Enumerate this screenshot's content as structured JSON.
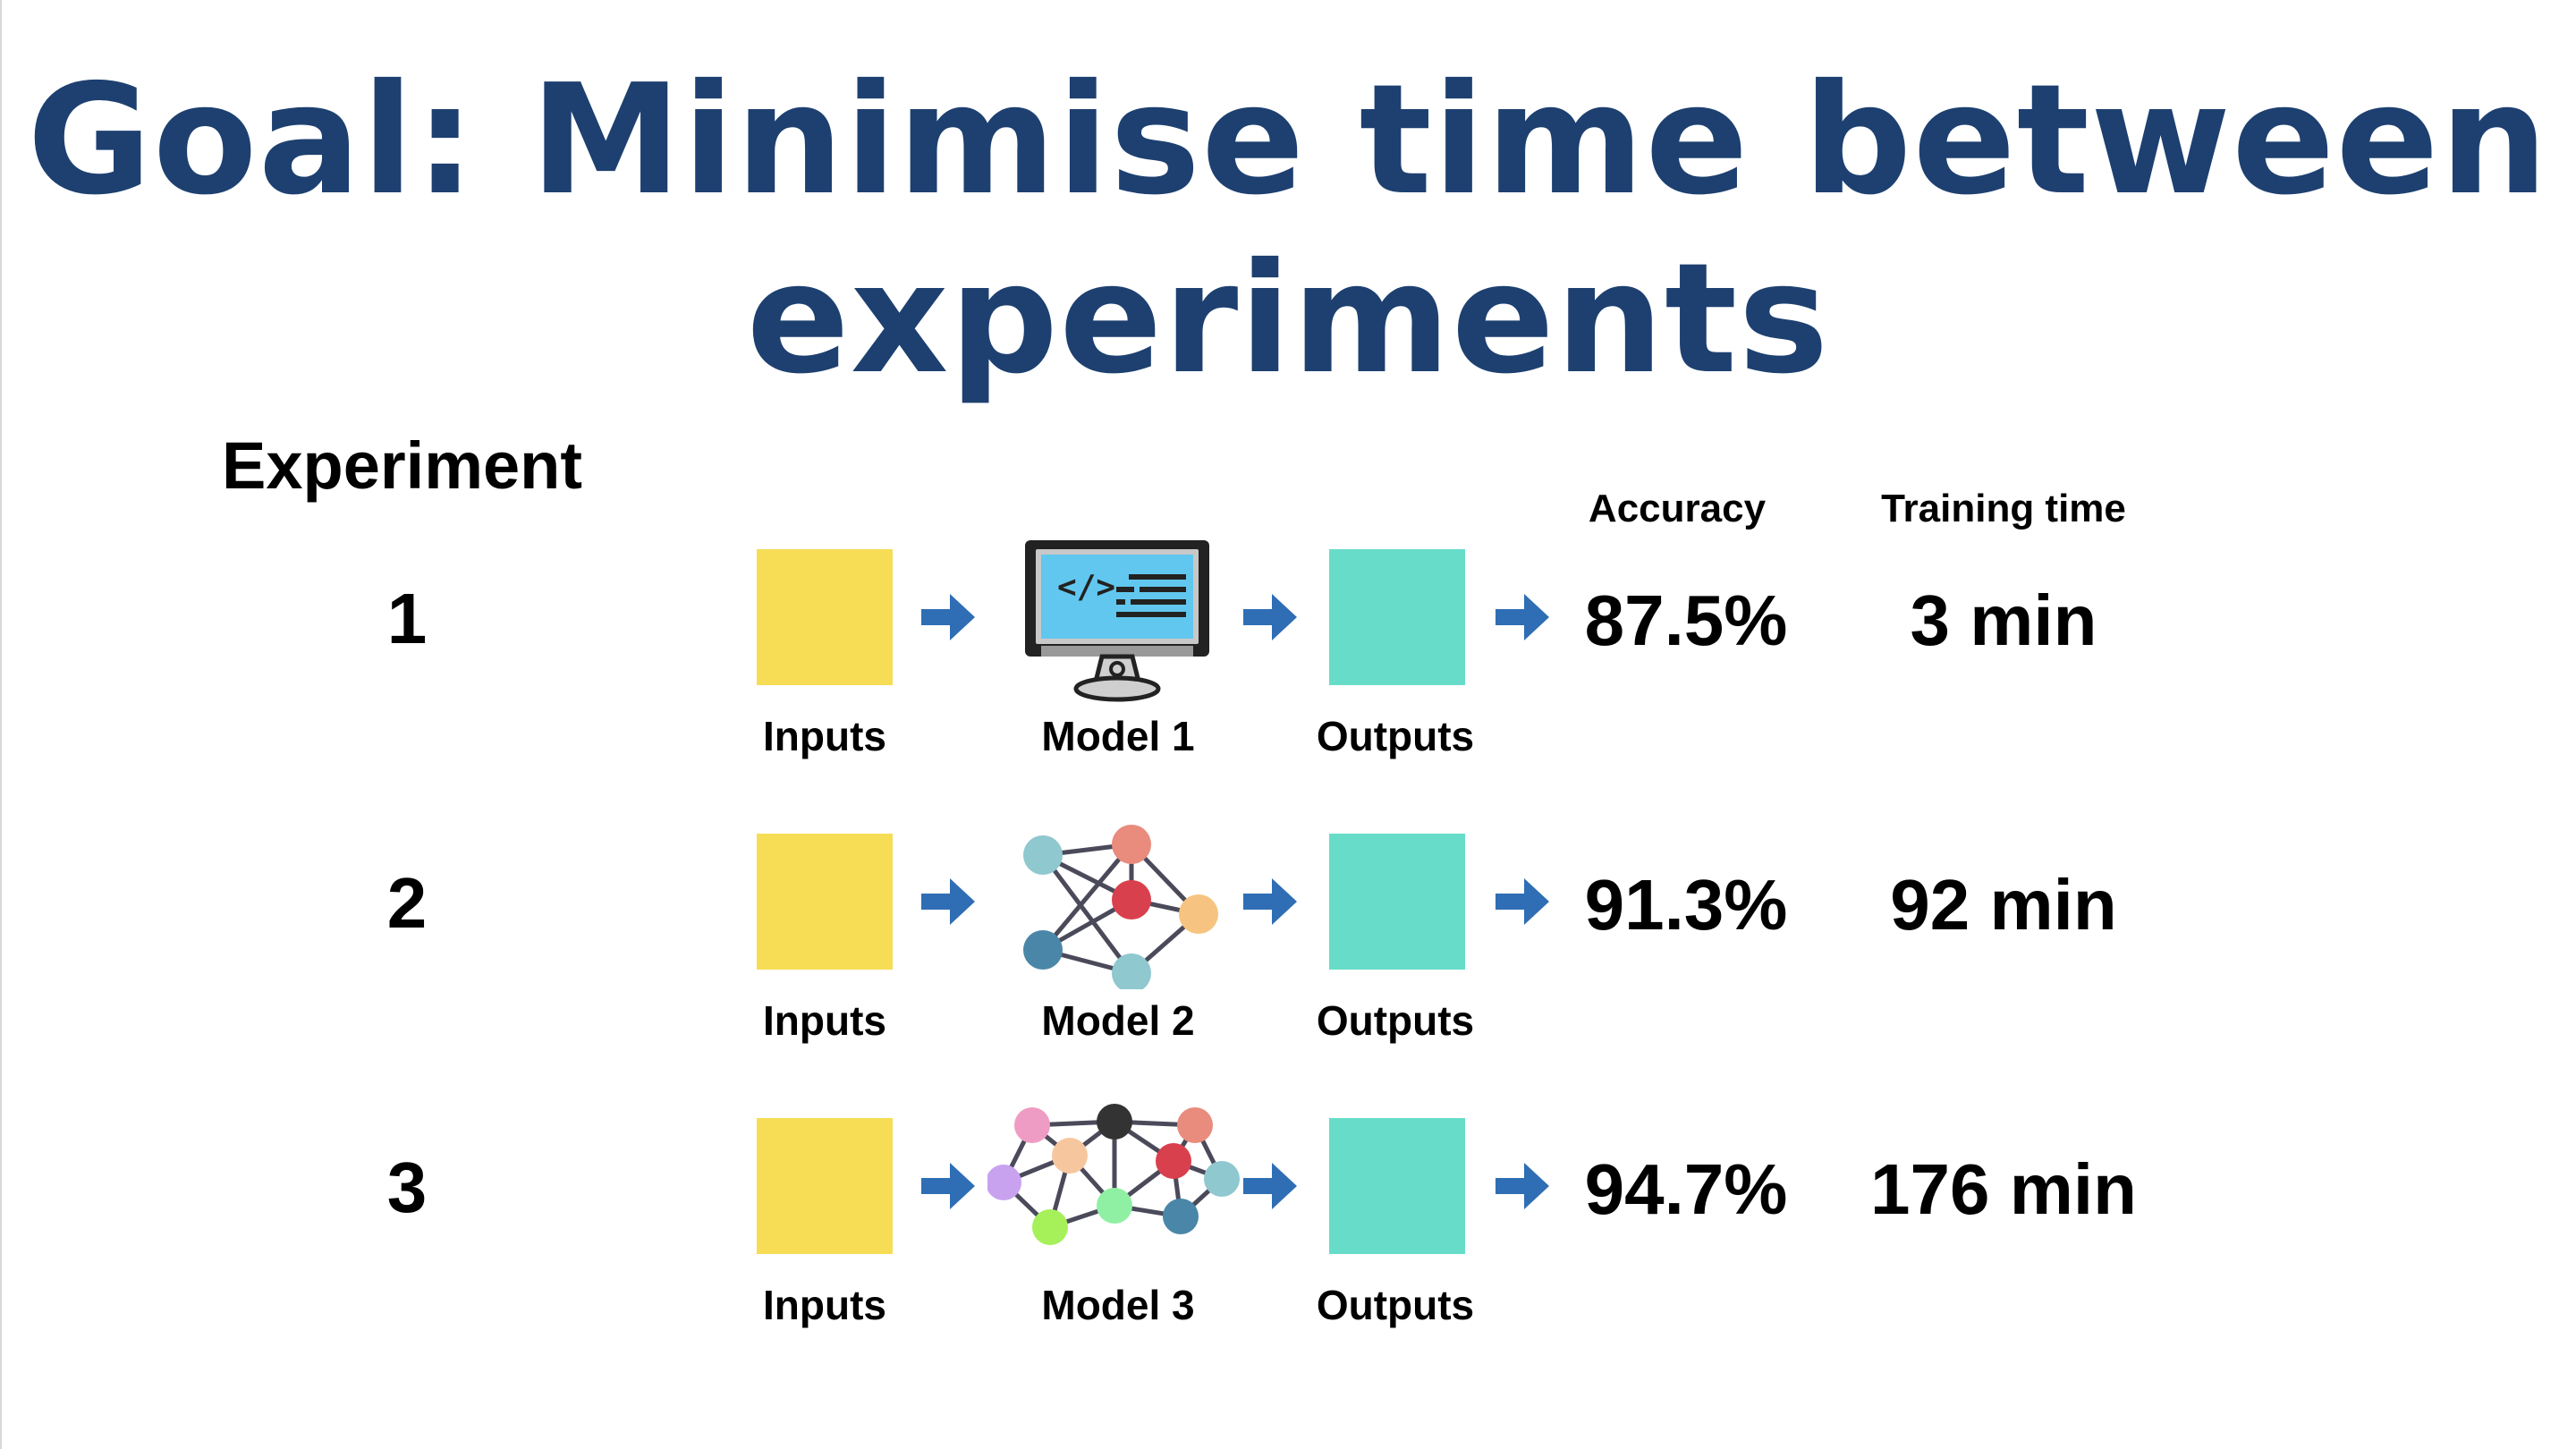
{
  "title": {
    "line1": "Goal: Minimise time between",
    "line2": "experiments"
  },
  "header": {
    "experiment": "Experiment",
    "accuracy": "Accuracy",
    "training_time": "Training time"
  },
  "rows": [
    {
      "number": "1",
      "input_label": "Inputs",
      "model_label": "Model 1",
      "output_label": "Outputs",
      "accuracy": "87.5%",
      "training_time": "3 min",
      "model_icon": "computer-code-icon"
    },
    {
      "number": "2",
      "input_label": "Inputs",
      "model_label": "Model 2",
      "output_label": "Outputs",
      "accuracy": "91.3%",
      "training_time": "92 min",
      "model_icon": "small-network-icon"
    },
    {
      "number": "3",
      "input_label": "Inputs",
      "model_label": "Model 3",
      "output_label": "Outputs",
      "accuracy": "94.7%",
      "training_time": "176 min",
      "model_icon": "large-network-icon"
    }
  ],
  "colors": {
    "title": "#1d4070",
    "input_box": "#f6dd55",
    "output_box": "#67ddc9",
    "arrow": "#2f6eb5"
  }
}
